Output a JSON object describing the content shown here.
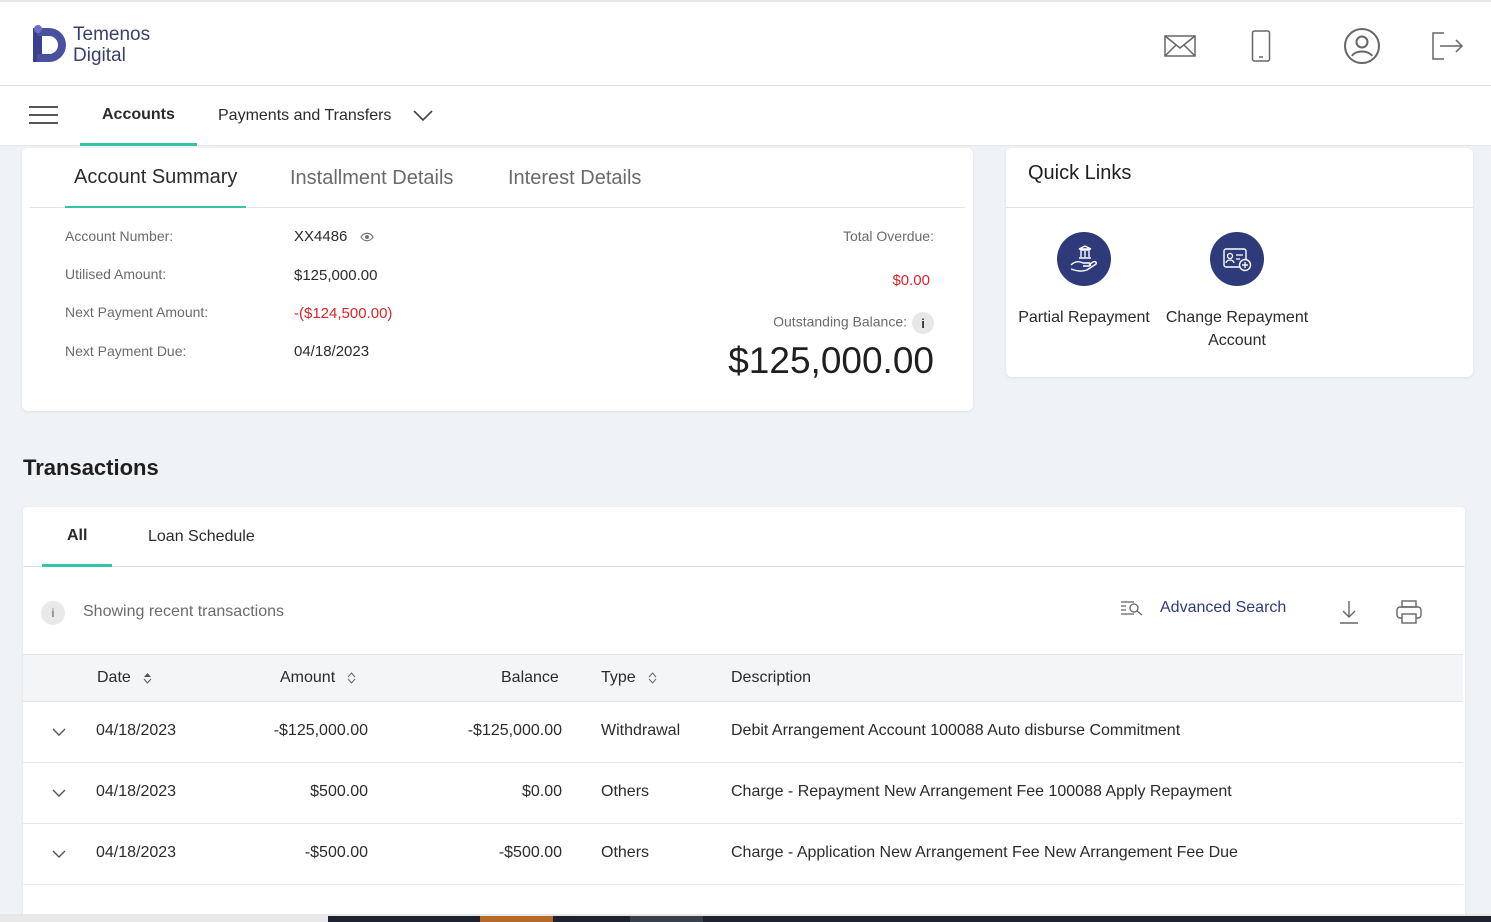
{
  "header": {
    "brand_line1": "Temenos",
    "brand_line2": "Digital",
    "icons": [
      "mail-icon",
      "mobile-icon",
      "profile-icon",
      "logout-icon"
    ]
  },
  "nav": {
    "tabs": [
      {
        "label": "Accounts",
        "active": true
      },
      {
        "label": "Payments and Transfers",
        "active": false
      }
    ]
  },
  "summary": {
    "tabs": [
      "Account Summary",
      "Installment Details",
      "Interest Details"
    ],
    "account_number_label": "Account Number:",
    "account_number": "XX4486",
    "utilised_label": "Utilised Amount:",
    "utilised": "$125,000.00",
    "next_payment_amount_label": "Next Payment Amount:",
    "next_payment_amount": "-($124,500.00)",
    "next_payment_due_label": "Next Payment Due:",
    "next_payment_due": "04/18/2023",
    "total_overdue_label": "Total Overdue:",
    "total_overdue": "$0.00",
    "outstanding_label": "Outstanding Balance:",
    "outstanding": "$125,000.00"
  },
  "quick_links": {
    "title": "Quick Links",
    "items": [
      {
        "label": "Partial Repayment",
        "icon": "hand-bank-icon"
      },
      {
        "label": "Change Repayment Account",
        "icon": "account-card-icon"
      }
    ]
  },
  "transactions": {
    "title": "Transactions",
    "tabs": [
      "All",
      "Loan Schedule"
    ],
    "info": "i",
    "showing": "Showing recent transactions",
    "advanced_search": "Advanced Search",
    "columns": [
      "Date",
      "Amount",
      "Balance",
      "Type",
      "Description"
    ],
    "rows": [
      {
        "date": "04/18/2023",
        "amount": "-$125,000.00",
        "balance": "-$125,000.00",
        "type": "Withdrawal",
        "description": "Debit Arrangement Account 100088 Auto disburse Commitment"
      },
      {
        "date": "04/18/2023",
        "amount": "$500.00",
        "balance": "$0.00",
        "type": "Others",
        "description": "Charge - Repayment New Arrangement Fee 100088 Apply Repayment"
      },
      {
        "date": "04/18/2023",
        "amount": "-$500.00",
        "balance": "-$500.00",
        "type": "Others",
        "description": "Charge - Application New Arrangement Fee New Arrangement Fee Due"
      }
    ]
  },
  "colors": {
    "accent": "#35c5a4",
    "brand": "#2f3a7a",
    "negative": "#d9262b"
  }
}
